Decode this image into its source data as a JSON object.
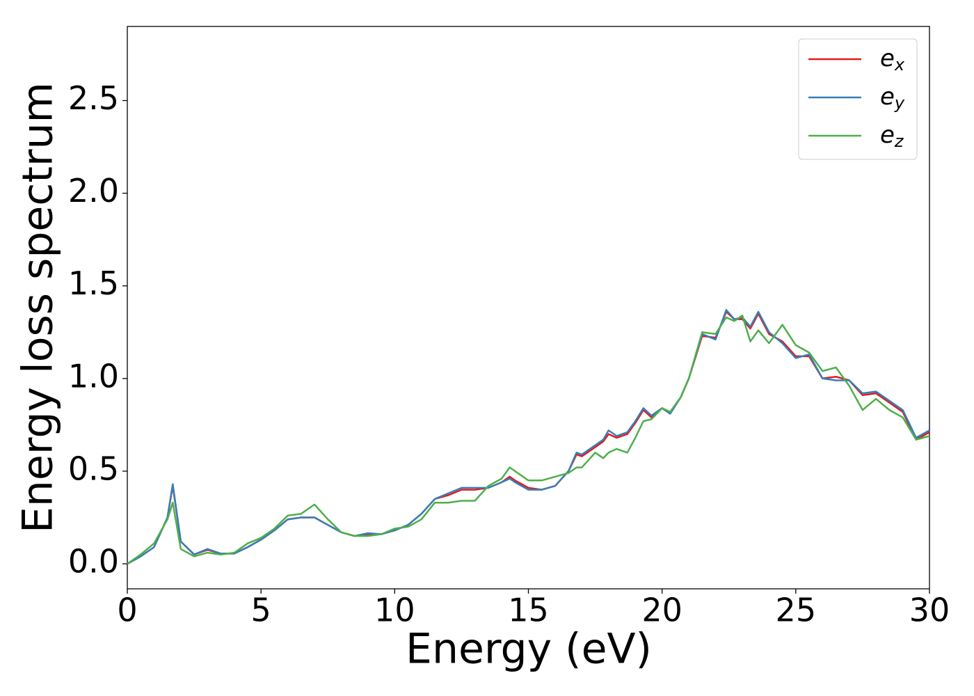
{
  "chart_data": {
    "type": "line",
    "xlabel": "Energy (eV)",
    "ylabel": "Energy loss spectrum",
    "x": [
      0,
      0.5,
      1,
      1.5,
      1.7,
      2,
      2.5,
      3,
      3.5,
      4,
      4.5,
      5,
      5.5,
      6,
      6.5,
      7,
      7.5,
      8,
      8.5,
      9,
      9.5,
      10,
      10.5,
      11,
      11.5,
      12,
      12.5,
      13,
      13.5,
      14,
      14.3,
      14.5,
      15,
      15.5,
      16,
      16.5,
      16.8,
      17,
      17.5,
      17.8,
      18,
      18.3,
      18.7,
      19,
      19.3,
      19.6,
      20,
      20.3,
      20.7,
      21,
      21.5,
      22,
      22.4,
      22.7,
      23,
      23.3,
      23.6,
      24,
      24.5,
      25,
      25.5,
      26,
      26.5,
      27,
      27.5,
      28,
      28.5,
      29,
      29.5,
      30
    ],
    "series": [
      {
        "name": "e_x",
        "color": "#e41a1c",
        "values": [
          0,
          0.04,
          0.09,
          0.25,
          0.42,
          0.12,
          0.05,
          0.075,
          0.055,
          0.055,
          0.09,
          0.13,
          0.18,
          0.24,
          0.25,
          0.25,
          0.21,
          0.17,
          0.15,
          0.16,
          0.16,
          0.18,
          0.21,
          0.27,
          0.35,
          0.37,
          0.4,
          0.4,
          0.41,
          0.44,
          0.47,
          0.45,
          0.41,
          0.4,
          0.42,
          0.5,
          0.59,
          0.58,
          0.63,
          0.66,
          0.7,
          0.68,
          0.7,
          0.76,
          0.83,
          0.79,
          0.84,
          0.81,
          0.9,
          1.0,
          1.23,
          1.22,
          1.36,
          1.32,
          1.32,
          1.27,
          1.35,
          1.24,
          1.2,
          1.12,
          1.12,
          1.0,
          1.01,
          0.99,
          0.91,
          0.92,
          0.87,
          0.82,
          0.67,
          0.71
        ]
      },
      {
        "name": "e_y",
        "color": "#377eb8",
        "values": [
          0,
          0.04,
          0.09,
          0.25,
          0.43,
          0.12,
          0.05,
          0.08,
          0.055,
          0.055,
          0.09,
          0.13,
          0.18,
          0.24,
          0.25,
          0.25,
          0.21,
          0.17,
          0.15,
          0.165,
          0.16,
          0.18,
          0.21,
          0.27,
          0.35,
          0.38,
          0.41,
          0.41,
          0.41,
          0.44,
          0.46,
          0.44,
          0.4,
          0.4,
          0.42,
          0.5,
          0.6,
          0.59,
          0.64,
          0.67,
          0.72,
          0.69,
          0.71,
          0.77,
          0.84,
          0.8,
          0.84,
          0.81,
          0.9,
          1.0,
          1.24,
          1.21,
          1.37,
          1.32,
          1.33,
          1.28,
          1.36,
          1.25,
          1.19,
          1.11,
          1.13,
          1.0,
          0.99,
          0.99,
          0.92,
          0.93,
          0.88,
          0.83,
          0.68,
          0.72
        ]
      },
      {
        "name": "e_z",
        "color": "#4daf4a",
        "values": [
          0,
          0.05,
          0.11,
          0.24,
          0.33,
          0.08,
          0.04,
          0.06,
          0.05,
          0.06,
          0.11,
          0.14,
          0.19,
          0.26,
          0.27,
          0.32,
          0.24,
          0.17,
          0.15,
          0.15,
          0.16,
          0.19,
          0.2,
          0.24,
          0.33,
          0.33,
          0.34,
          0.34,
          0.42,
          0.46,
          0.52,
          0.5,
          0.45,
          0.45,
          0.47,
          0.49,
          0.52,
          0.52,
          0.6,
          0.57,
          0.6,
          0.62,
          0.6,
          0.68,
          0.77,
          0.78,
          0.84,
          0.82,
          0.9,
          1.0,
          1.25,
          1.24,
          1.33,
          1.31,
          1.34,
          1.2,
          1.26,
          1.19,
          1.29,
          1.18,
          1.14,
          1.04,
          1.06,
          0.96,
          0.83,
          0.89,
          0.83,
          0.79,
          0.67,
          0.69
        ]
      }
    ],
    "xlim": [
      0,
      30
    ],
    "xticks": [
      0,
      5,
      10,
      15,
      20,
      25,
      30
    ],
    "ylim": [
      -0.135,
      2.9
    ],
    "yticks": [
      {
        "value": 0,
        "label": "0.0"
      },
      0.5,
      {
        "value": 1,
        "label": "1.0"
      },
      1.5,
      {
        "value": 2,
        "label": "2.0"
      },
      2.5
    ],
    "legend": "upper right",
    "grid": false
  }
}
